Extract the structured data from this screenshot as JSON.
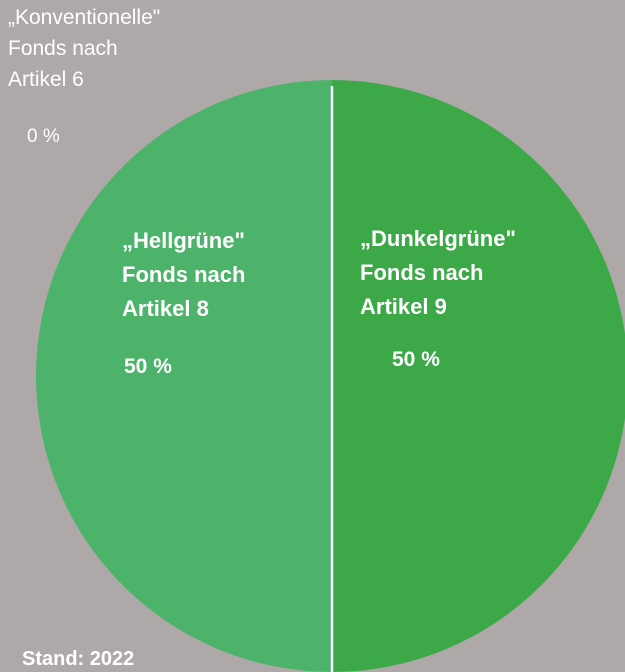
{
  "chart_data": {
    "type": "pie",
    "categories": [
      "„Konventionelle\" Fonds nach Artikel 6",
      "„Hellgrüne\" Fonds nach Artikel 8",
      "„Dunkelgrüne\" Fonds nach Artikel 9"
    ],
    "values": [
      0,
      50,
      50
    ],
    "value_labels": [
      "0 %",
      "50 %",
      "50 %"
    ],
    "colors": [
      "#aea9a8",
      "#4db36a",
      "#3ca848"
    ],
    "slice_labels": {
      "article6": [
        "„Konventionelle\"",
        "Fonds nach",
        "Artikel 6"
      ],
      "article8": [
        "„Hellgrüne\"",
        "Fonds nach",
        "Artikel 8"
      ],
      "article9": [
        "„Dunkelgrüne\"",
        "Fonds nach",
        "Artikel 9"
      ]
    },
    "annotation": "Stand: 2022",
    "divider_color": "#ffffff",
    "background": "#aea9a8"
  }
}
